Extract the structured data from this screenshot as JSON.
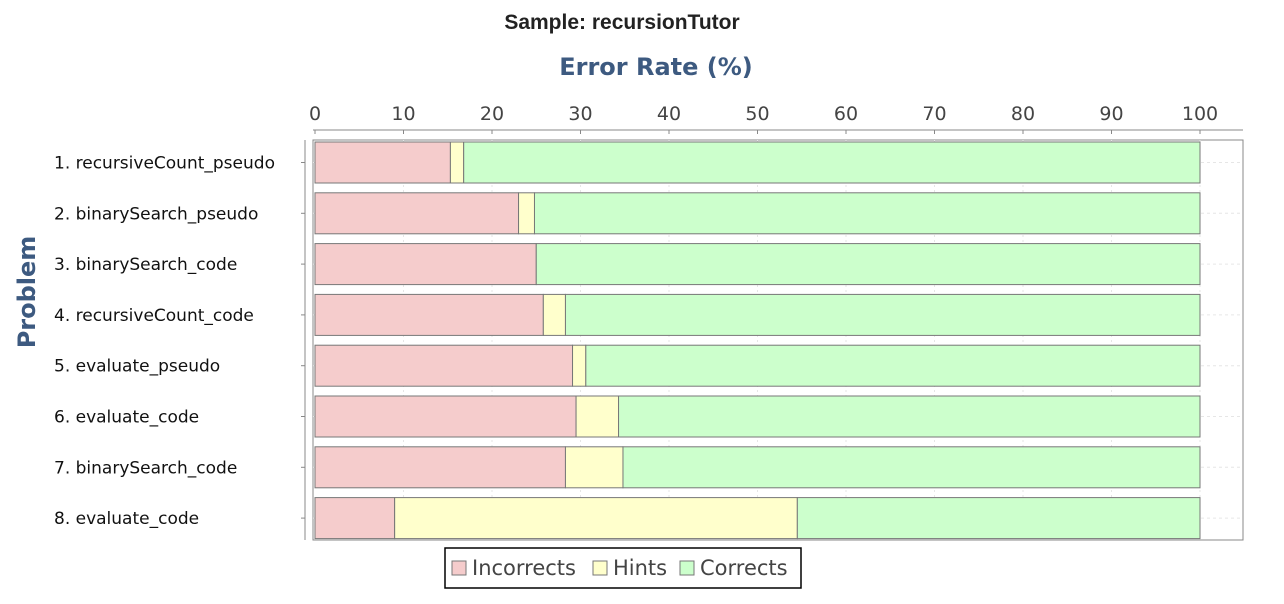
{
  "chart_data": {
    "type": "bar",
    "orientation": "horizontal",
    "stacked": true,
    "title": "Sample: recursionTutor",
    "xlabel": "Error Rate (%)",
    "ylabel": "Problem",
    "xlim": [
      0,
      100
    ],
    "x_ticks": [
      "0",
      "10",
      "20",
      "30",
      "40",
      "50",
      "60",
      "70",
      "80",
      "90",
      "100"
    ],
    "x_axis_position": "top",
    "grid": true,
    "legend_position": "bottom-center",
    "categories": [
      "1. recursiveCount_pseudo",
      "2. binarySearch_pseudo",
      "3. binarySearch_code",
      "4. recursiveCount_code",
      "5. evaluate_pseudo",
      "6. evaluate_code",
      "7. binarySearch_code",
      "8. evaluate_code"
    ],
    "series": [
      {
        "name": "Incorrects",
        "color": "#f5cccc",
        "values": [
          15.3,
          23.0,
          25.0,
          25.8,
          29.1,
          29.5,
          28.3,
          9.0
        ]
      },
      {
        "name": "Hints",
        "color": "#ffffcc",
        "values": [
          1.5,
          1.8,
          0.0,
          2.5,
          1.5,
          4.8,
          6.5,
          45.5
        ]
      },
      {
        "name": "Corrects",
        "color": "#ccffcc",
        "values": [
          83.2,
          75.2,
          75.0,
          71.7,
          69.4,
          65.7,
          65.2,
          45.5
        ]
      }
    ]
  }
}
